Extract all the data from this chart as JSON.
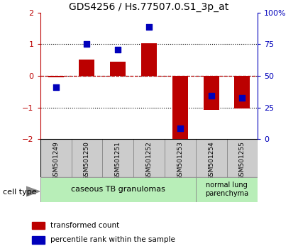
{
  "title": "GDS4256 / Hs.77507.0.S1_3p_at",
  "samples": [
    "GSM501249",
    "GSM501250",
    "GSM501251",
    "GSM501252",
    "GSM501253",
    "GSM501254",
    "GSM501255"
  ],
  "red_bars": [
    -0.05,
    0.52,
    0.45,
    1.02,
    -2.12,
    -1.08,
    -1.03
  ],
  "blue_squares_left": [
    -0.35,
    1.0,
    0.82,
    1.55,
    -1.65,
    -0.62,
    -0.7
  ],
  "ylim": [
    -2,
    2
  ],
  "yticks_left": [
    -2,
    -1,
    0,
    1,
    2
  ],
  "yticks_right_labels": [
    "0",
    "25",
    "50",
    "75",
    "100%"
  ],
  "yticks_right_vals": [
    -2,
    -1,
    0,
    1,
    2
  ],
  "dotted_lines": [
    -1,
    0,
    1
  ],
  "group1_label": "caseous TB granulomas",
  "group2_label": "normal lung\nparenchyma",
  "cell_type_label": "cell type",
  "legend_red": "transformed count",
  "legend_blue": "percentile rank within the sample",
  "bar_color": "#bb0000",
  "blue_color": "#0000bb",
  "group1_color": "#b8eeb8",
  "group2_color": "#b8eeb8",
  "tick_bg_color": "#cccccc",
  "bar_width": 0.5,
  "title_fontsize": 10,
  "tick_fontsize": 8,
  "sample_fontsize": 6.5
}
